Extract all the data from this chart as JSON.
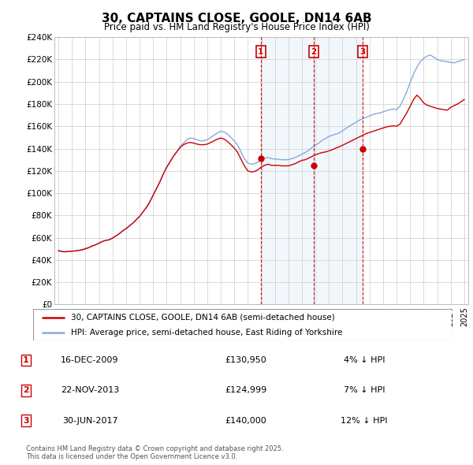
{
  "title": "30, CAPTAINS CLOSE, GOOLE, DN14 6AB",
  "subtitle": "Price paid vs. HM Land Registry's House Price Index (HPI)",
  "ylabel_ticks": [
    "£0",
    "£20K",
    "£40K",
    "£60K",
    "£80K",
    "£100K",
    "£120K",
    "£140K",
    "£160K",
    "£180K",
    "£200K",
    "£220K",
    "£240K"
  ],
  "ylim": [
    0,
    240000
  ],
  "yticks": [
    0,
    20000,
    40000,
    60000,
    80000,
    100000,
    120000,
    140000,
    160000,
    180000,
    200000,
    220000,
    240000
  ],
  "xlim_start": 1994.7,
  "xlim_end": 2025.3,
  "line1_color": "#cc0000",
  "line2_color": "#88aadd",
  "shade_color": "#ddeeff",
  "sale_markers": [
    {
      "label": "1",
      "date": "16-DEC-2009",
      "price": 130950,
      "pct": "4% ↓ HPI",
      "x_year": 2009.96
    },
    {
      "label": "2",
      "date": "22-NOV-2013",
      "price": 124999,
      "pct": "7% ↓ HPI",
      "x_year": 2013.89
    },
    {
      "label": "3",
      "date": "30-JUN-2017",
      "price": 140000,
      "pct": "12% ↓ HPI",
      "x_year": 2017.5
    }
  ],
  "legend_line1": "30, CAPTAINS CLOSE, GOOLE, DN14 6AB (semi-detached house)",
  "legend_line2": "HPI: Average price, semi-detached house, East Riding of Yorkshire",
  "footer": "Contains HM Land Registry data © Crown copyright and database right 2025.\nThis data is licensed under the Open Government Licence v3.0.",
  "hpi_data_x": [
    1995.0,
    1995.25,
    1995.5,
    1995.75,
    1996.0,
    1996.25,
    1996.5,
    1996.75,
    1997.0,
    1997.25,
    1997.5,
    1997.75,
    1998.0,
    1998.25,
    1998.5,
    1998.75,
    1999.0,
    1999.25,
    1999.5,
    1999.75,
    2000.0,
    2000.25,
    2000.5,
    2000.75,
    2001.0,
    2001.25,
    2001.5,
    2001.75,
    2002.0,
    2002.25,
    2002.5,
    2002.75,
    2003.0,
    2003.25,
    2003.5,
    2003.75,
    2004.0,
    2004.25,
    2004.5,
    2004.75,
    2005.0,
    2005.25,
    2005.5,
    2005.75,
    2006.0,
    2006.25,
    2006.5,
    2006.75,
    2007.0,
    2007.25,
    2007.5,
    2007.75,
    2008.0,
    2008.25,
    2008.5,
    2008.75,
    2009.0,
    2009.25,
    2009.5,
    2009.75,
    2010.0,
    2010.25,
    2010.5,
    2010.75,
    2011.0,
    2011.25,
    2011.5,
    2011.75,
    2012.0,
    2012.25,
    2012.5,
    2012.75,
    2013.0,
    2013.25,
    2013.5,
    2013.75,
    2014.0,
    2014.25,
    2014.5,
    2014.75,
    2015.0,
    2015.25,
    2015.5,
    2015.75,
    2016.0,
    2016.25,
    2016.5,
    2016.75,
    2017.0,
    2017.25,
    2017.5,
    2017.75,
    2018.0,
    2018.25,
    2018.5,
    2018.75,
    2019.0,
    2019.25,
    2019.5,
    2019.75,
    2020.0,
    2020.25,
    2020.5,
    2020.75,
    2021.0,
    2021.25,
    2021.5,
    2021.75,
    2022.0,
    2022.25,
    2022.5,
    2022.75,
    2023.0,
    2023.25,
    2023.5,
    2023.75,
    2024.0,
    2024.25,
    2024.5,
    2024.75,
    2025.0
  ],
  "hpi_data_y": [
    48000,
    47500,
    47200,
    47500,
    47800,
    48000,
    48500,
    49000,
    50000,
    51000,
    52500,
    53500,
    55000,
    56500,
    57500,
    58000,
    59500,
    61500,
    63500,
    66000,
    68000,
    70500,
    73000,
    76000,
    79000,
    83000,
    87000,
    92000,
    98000,
    104000,
    110000,
    117000,
    123000,
    128000,
    133000,
    137000,
    142000,
    145000,
    148000,
    149500,
    149000,
    148000,
    147000,
    147000,
    148000,
    150000,
    152000,
    154000,
    155500,
    155000,
    153000,
    150000,
    147000,
    143000,
    137000,
    131000,
    127000,
    126000,
    126500,
    128000,
    130000,
    131500,
    132000,
    131000,
    130500,
    130500,
    130000,
    130000,
    130000,
    131000,
    132000,
    133500,
    135000,
    136500,
    138500,
    141000,
    143000,
    145000,
    147500,
    149000,
    151000,
    152000,
    153000,
    154000,
    156000,
    158000,
    160000,
    162000,
    163500,
    165500,
    167000,
    168000,
    169500,
    170500,
    171500,
    172000,
    173000,
    174000,
    175000,
    175500,
    175000,
    178000,
    184000,
    191000,
    199000,
    207000,
    213000,
    218000,
    221000,
    223000,
    224000,
    222000,
    220000,
    219000,
    218500,
    218000,
    217500,
    217000,
    218000,
    219000,
    220000
  ],
  "property_data_x": [
    1995.0,
    1995.25,
    1995.5,
    1995.75,
    1996.0,
    1996.25,
    1996.5,
    1996.75,
    1997.0,
    1997.25,
    1997.5,
    1997.75,
    1998.0,
    1998.25,
    1998.5,
    1998.75,
    1999.0,
    1999.25,
    1999.5,
    1999.75,
    2000.0,
    2000.25,
    2000.5,
    2000.75,
    2001.0,
    2001.25,
    2001.5,
    2001.75,
    2002.0,
    2002.25,
    2002.5,
    2002.75,
    2003.0,
    2003.25,
    2003.5,
    2003.75,
    2004.0,
    2004.25,
    2004.5,
    2004.75,
    2005.0,
    2005.25,
    2005.5,
    2005.75,
    2006.0,
    2006.25,
    2006.5,
    2006.75,
    2007.0,
    2007.25,
    2007.5,
    2007.75,
    2008.0,
    2008.25,
    2008.5,
    2008.75,
    2009.0,
    2009.25,
    2009.5,
    2009.75,
    2010.0,
    2010.25,
    2010.5,
    2010.75,
    2011.0,
    2011.25,
    2011.5,
    2011.75,
    2012.0,
    2012.25,
    2012.5,
    2012.75,
    2013.0,
    2013.25,
    2013.5,
    2013.75,
    2014.0,
    2014.25,
    2014.5,
    2014.75,
    2015.0,
    2015.25,
    2015.5,
    2015.75,
    2016.0,
    2016.25,
    2016.5,
    2016.75,
    2017.0,
    2017.25,
    2017.5,
    2017.75,
    2018.0,
    2018.25,
    2018.5,
    2018.75,
    2019.0,
    2019.25,
    2019.5,
    2019.75,
    2020.0,
    2020.25,
    2020.5,
    2020.75,
    2021.0,
    2021.25,
    2021.5,
    2021.75,
    2022.0,
    2022.25,
    2022.5,
    2022.75,
    2023.0,
    2023.25,
    2023.5,
    2023.75,
    2024.0,
    2024.25,
    2024.5,
    2024.75,
    2025.0
  ],
  "property_data_y": [
    48500,
    47800,
    47400,
    47800,
    48000,
    48200,
    48700,
    49200,
    50200,
    51200,
    52700,
    53700,
    55200,
    56700,
    57700,
    58200,
    59700,
    61700,
    63700,
    66200,
    68200,
    70700,
    73200,
    76200,
    79200,
    83200,
    87200,
    92200,
    98200,
    104200,
    110200,
    117200,
    123200,
    128200,
    133200,
    137200,
    141000,
    143500,
    145000,
    145500,
    145000,
    144000,
    143500,
    143500,
    144000,
    145500,
    147000,
    148500,
    149500,
    148500,
    146500,
    143500,
    140500,
    136500,
    130500,
    124500,
    120000,
    119000,
    119500,
    121000,
    123500,
    125000,
    126000,
    125000,
    125000,
    125000,
    124500,
    124500,
    124500,
    125500,
    126500,
    128000,
    129500,
    130000,
    131500,
    133000,
    134500,
    135500,
    136500,
    137000,
    138000,
    139000,
    140500,
    141500,
    143000,
    144500,
    146000,
    147500,
    149000,
    150500,
    152000,
    153500,
    154500,
    155500,
    156500,
    157500,
    158500,
    159500,
    160000,
    160500,
    160000,
    162000,
    167000,
    172000,
    178000,
    184000,
    188000,
    185000,
    181000,
    179000,
    178000,
    177000,
    176000,
    175500,
    175000,
    174500,
    177000,
    178500,
    180000,
    182000,
    184000
  ]
}
